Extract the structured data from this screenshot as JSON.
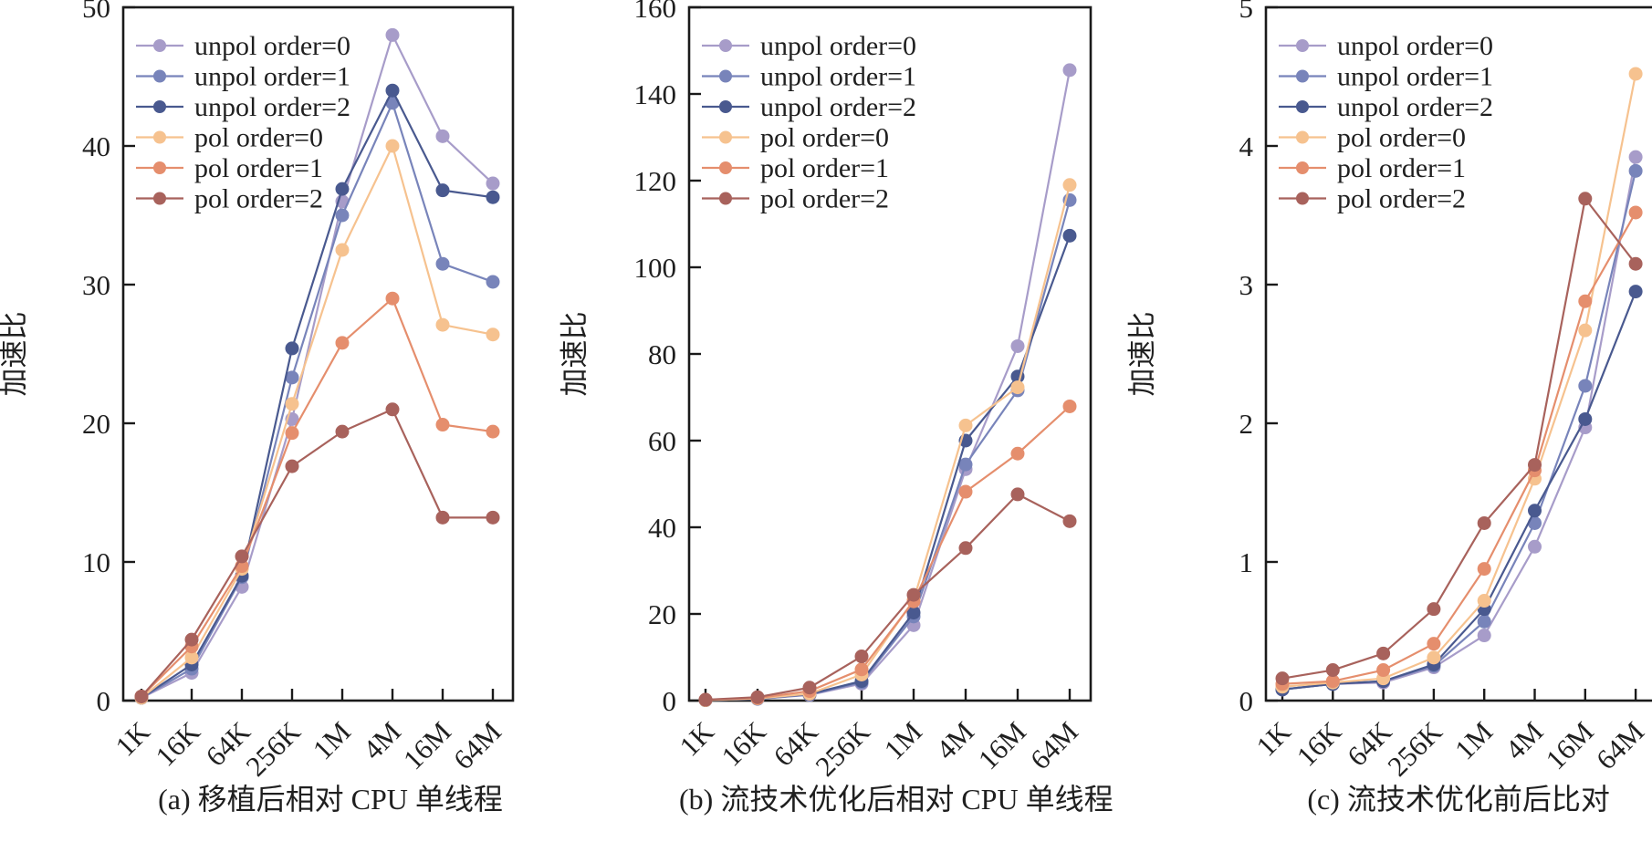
{
  "figure": {
    "ylabel": "加速比",
    "categories": [
      "1K",
      "16K",
      "64K",
      "256K",
      "1M",
      "4M",
      "16M",
      "64M"
    ],
    "legend_labels": [
      "unpol order=0",
      "unpol order=1",
      "unpol order=2",
      "pol order=0",
      "pol order=1",
      "pol order=2"
    ],
    "series_colors": [
      "#a79cc9",
      "#7884ba",
      "#49598f",
      "#f6c28f",
      "#e58e6d",
      "#a8625c"
    ],
    "axis_color": "#1a1a1a",
    "background_color": "#ffffff"
  },
  "chart_data": [
    {
      "id": "a",
      "type": "line",
      "caption": "(a) 移植后相对 CPU 单线程",
      "ylabel": "加速比",
      "categories": [
        "1K",
        "16K",
        "64K",
        "256K",
        "1M",
        "4M",
        "16M",
        "64M"
      ],
      "ylim": [
        0,
        50
      ],
      "yticks": [
        0,
        10,
        20,
        30,
        40,
        50
      ],
      "grid": false,
      "legend_position": "upper-left",
      "series": [
        {
          "name": "unpol order=0",
          "color": "#a79cc9",
          "values": [
            0.2,
            2.0,
            8.2,
            20.3,
            36.0,
            48.0,
            40.7,
            37.3
          ]
        },
        {
          "name": "unpol order=1",
          "color": "#7884ba",
          "values": [
            0.2,
            2.3,
            8.9,
            23.3,
            35.0,
            43.1,
            31.5,
            30.2
          ]
        },
        {
          "name": "unpol order=2",
          "color": "#49598f",
          "values": [
            0.2,
            2.6,
            9.0,
            25.4,
            36.9,
            44.0,
            36.8,
            36.3
          ]
        },
        {
          "name": "pol order=0",
          "color": "#f6c28f",
          "values": [
            0.2,
            3.1,
            9.5,
            21.4,
            32.5,
            40.0,
            27.1,
            26.4
          ]
        },
        {
          "name": "pol order=1",
          "color": "#e58e6d",
          "values": [
            0.3,
            3.9,
            9.7,
            19.3,
            25.8,
            29.0,
            19.9,
            19.4
          ]
        },
        {
          "name": "pol order=2",
          "color": "#a8625c",
          "values": [
            0.3,
            4.4,
            10.4,
            16.9,
            19.4,
            21.0,
            13.2,
            13.2
          ]
        }
      ]
    },
    {
      "id": "b",
      "type": "line",
      "caption": "(b) 流技术优化后相对 CPU 单线程",
      "ylabel": "加速比",
      "categories": [
        "1K",
        "16K",
        "64K",
        "256K",
        "1M",
        "4M",
        "16M",
        "64M"
      ],
      "ylim": [
        0,
        160
      ],
      "yticks": [
        0,
        20,
        40,
        60,
        80,
        100,
        120,
        140,
        160
      ],
      "grid": false,
      "legend_position": "upper-left",
      "series": [
        {
          "name": "unpol order=0",
          "color": "#a79cc9",
          "values": [
            0.1,
            0.4,
            1.3,
            3.9,
            17.4,
            53.4,
            81.8,
            145.5
          ]
        },
        {
          "name": "unpol order=1",
          "color": "#7884ba",
          "values": [
            0.1,
            0.4,
            1.4,
            4.2,
            19.4,
            54.5,
            71.6,
            115.5
          ]
        },
        {
          "name": "unpol order=2",
          "color": "#49598f",
          "values": [
            0.1,
            0.5,
            1.5,
            4.5,
            20.3,
            60.0,
            74.8,
            107.3
          ]
        },
        {
          "name": "pol order=0",
          "color": "#f6c28f",
          "values": [
            0.1,
            0.5,
            1.6,
            6.0,
            23.2,
            63.5,
            72.3,
            119.0
          ]
        },
        {
          "name": "pol order=1",
          "color": "#e58e6d",
          "values": [
            0.2,
            0.6,
            2.2,
            7.2,
            22.9,
            48.2,
            57.0,
            67.9
          ]
        },
        {
          "name": "pol order=2",
          "color": "#a8625c",
          "values": [
            0.2,
            0.8,
            3.0,
            10.2,
            24.4,
            35.2,
            47.6,
            41.4
          ]
        }
      ]
    },
    {
      "id": "c",
      "type": "line",
      "caption": "(c) 流技术优化前后比对",
      "ylabel": "加速比",
      "categories": [
        "1K",
        "16K",
        "64K",
        "256K",
        "1M",
        "4M",
        "16M",
        "64M"
      ],
      "ylim": [
        0,
        5
      ],
      "yticks": [
        0,
        1,
        2,
        3,
        4,
        5
      ],
      "grid": false,
      "legend_position": "upper-left",
      "series": [
        {
          "name": "unpol order=0",
          "color": "#a79cc9",
          "values": [
            0.08,
            0.12,
            0.13,
            0.24,
            0.47,
            1.11,
            1.97,
            3.92
          ]
        },
        {
          "name": "unpol order=1",
          "color": "#7884ba",
          "values": [
            0.08,
            0.12,
            0.14,
            0.25,
            0.57,
            1.28,
            2.27,
            3.82
          ]
        },
        {
          "name": "unpol order=2",
          "color": "#49598f",
          "values": [
            0.08,
            0.12,
            0.14,
            0.26,
            0.66,
            1.37,
            2.03,
            2.95
          ]
        },
        {
          "name": "pol order=0",
          "color": "#f6c28f",
          "values": [
            0.1,
            0.13,
            0.16,
            0.31,
            0.72,
            1.6,
            2.67,
            4.52
          ]
        },
        {
          "name": "pol order=1",
          "color": "#e58e6d",
          "values": [
            0.12,
            0.14,
            0.22,
            0.41,
            0.95,
            1.66,
            2.88,
            3.52
          ]
        },
        {
          "name": "pol order=2",
          "color": "#a8625c",
          "values": [
            0.16,
            0.22,
            0.34,
            0.66,
            1.28,
            1.7,
            3.62,
            3.15
          ]
        }
      ]
    }
  ]
}
